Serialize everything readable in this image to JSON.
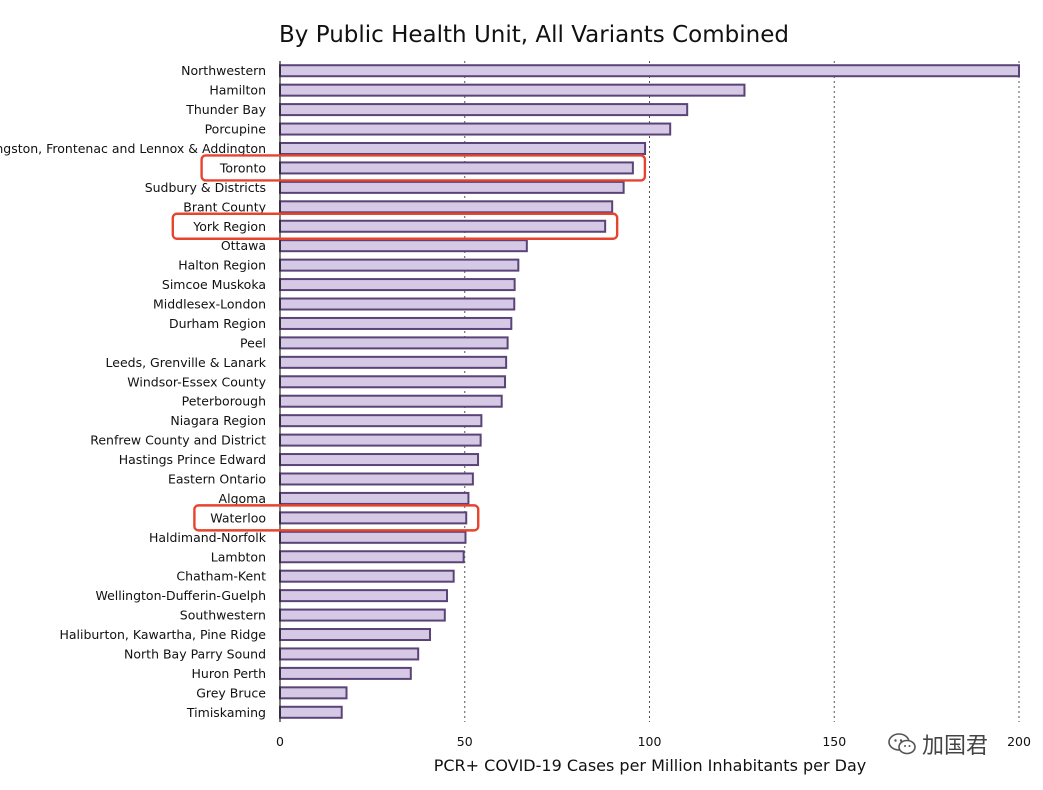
{
  "chart_data": {
    "type": "bar",
    "orientation": "horizontal",
    "title": "By Public Health Unit, All Variants Combined",
    "xlabel": "PCR+ COVID-19 Cases per Million Inhabitants per Day",
    "xlim": [
      0,
      200
    ],
    "xticks": [
      0,
      50,
      100,
      150,
      200
    ],
    "grid": "vertical dashed at 50, 100, 150, 200",
    "bar_fill": "#d6c9e6",
    "bar_stroke": "#5a4376",
    "highlight_color": "#e8432d",
    "categories": [
      "Northwestern",
      "Hamilton",
      "Thunder Bay",
      "Porcupine",
      "Kingston, Frontenac and Lennox & Addington",
      "Toronto",
      "Sudbury & Districts",
      "Brant County",
      "York Region",
      "Ottawa",
      "Halton Region",
      "Simcoe Muskoka",
      "Middlesex-London",
      "Durham Region",
      "Peel",
      "Leeds, Grenville & Lanark",
      "Windsor-Essex County",
      "Peterborough",
      "Niagara Region",
      "Renfrew County and District",
      "Hastings Prince Edward",
      "Eastern Ontario",
      "Algoma",
      "Waterloo",
      "Haldimand-Norfolk",
      "Lambton",
      "Chatham-Kent",
      "Wellington-Dufferin-Guelph",
      "Southwestern",
      "Haliburton, Kawartha, Pine Ridge",
      "North Bay Parry Sound",
      "Huron Perth",
      "Grey Bruce",
      "Timiskaming"
    ],
    "values": [
      200,
      125.7,
      110.2,
      105.6,
      98.8,
      95.5,
      93,
      89.9,
      88,
      66.8,
      64.5,
      63.5,
      63.4,
      62.6,
      61.6,
      61.2,
      60.9,
      60,
      54.5,
      54.3,
      53.6,
      52.2,
      51,
      50.4,
      50.2,
      49.7,
      47,
      45.2,
      44.6,
      40.6,
      37.4,
      35.4,
      18,
      16.7
    ],
    "highlighted": [
      "Toronto",
      "York Region",
      "Waterloo"
    ]
  },
  "watermark": {
    "text": "加国君",
    "icon": "wechat-icon"
  }
}
